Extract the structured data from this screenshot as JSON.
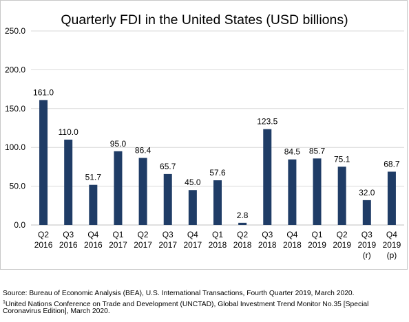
{
  "chart_data": {
    "type": "bar",
    "title": "Quarterly FDI in the United States (USD billions)",
    "categories": [
      [
        "Q2",
        "2016"
      ],
      [
        "Q3",
        "2016"
      ],
      [
        "Q4",
        "2016"
      ],
      [
        "Q1",
        "2017"
      ],
      [
        "Q2",
        "2017"
      ],
      [
        "Q3",
        "2017"
      ],
      [
        "Q4",
        "2017"
      ],
      [
        "Q1",
        "2018"
      ],
      [
        "Q2",
        "2018"
      ],
      [
        "Q3",
        "2018"
      ],
      [
        "Q4",
        "2018"
      ],
      [
        "Q1",
        "2019"
      ],
      [
        "Q2",
        "2019"
      ],
      [
        "Q3",
        "2019",
        "(r)"
      ],
      [
        "Q4",
        "2019",
        "(p)"
      ]
    ],
    "values": [
      161.0,
      110.0,
      51.7,
      95.0,
      86.4,
      65.7,
      45.0,
      57.6,
      2.8,
      123.5,
      84.5,
      85.7,
      75.1,
      32.0,
      68.7
    ],
    "value_labels": [
      "161.0",
      "110.0",
      "51.7",
      "95.0",
      "86.4",
      "65.7",
      "45.0",
      "57.6",
      "2.8",
      "123.5",
      "84.5",
      "85.7",
      "75.1",
      "32.0",
      "68.7"
    ],
    "ylim": [
      0,
      250
    ],
    "yticks": [
      "0.0",
      "50.0",
      "100.0",
      "150.0",
      "200.0",
      "250.0"
    ],
    "grid": true,
    "bar_color": "#1f3c66",
    "xlabel": "",
    "ylabel": ""
  },
  "footnotes": {
    "source": "Source: Bureau of Economic Analysis (BEA), U.S. International Transactions, Fourth Quarter 2019, March 2020.",
    "note_marker": "1",
    "note_line1": "United Nations Conference on Trade and Development (UNCTAD), Global Investment Trend Monitor No.35 [Special",
    "note_line2": "Coronavirus Edition], March 2020."
  }
}
